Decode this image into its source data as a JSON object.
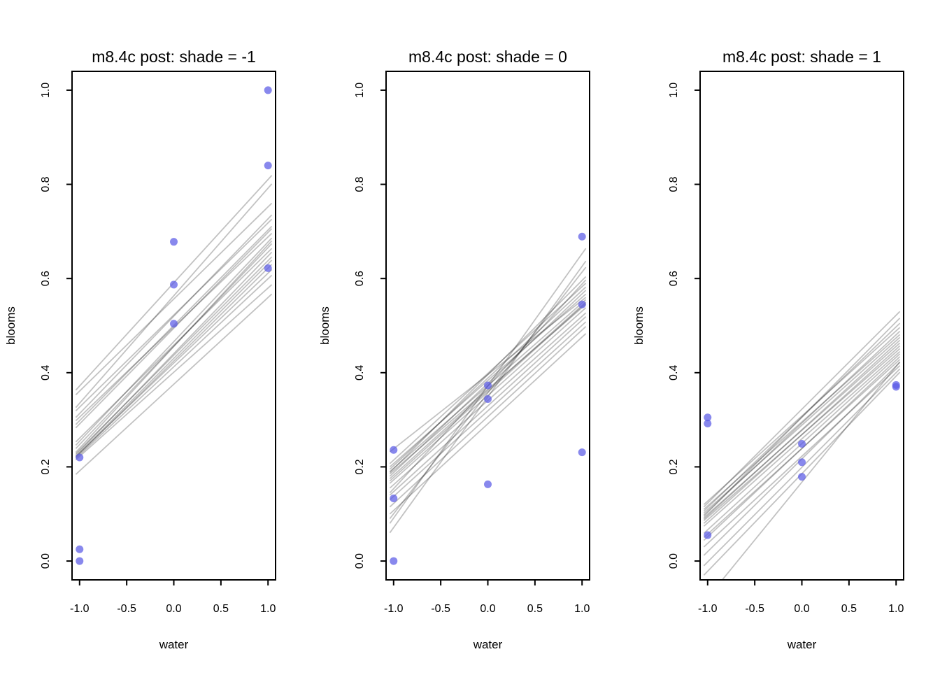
{
  "figure": {
    "background": "#ffffff",
    "point_color": "#5a5ae6",
    "point_opacity": 0.72,
    "point_radius": 5.5,
    "posterior_line_color": "#000000",
    "posterior_line_opacity": 0.24,
    "axis_color": "#000000",
    "x_tick_values": [
      -1.0,
      -0.5,
      0.0,
      0.5,
      1.0
    ],
    "x_tick_labels": [
      "-1.0",
      "-0.5",
      "0.0",
      "0.5",
      "1.0"
    ],
    "y_tick_values": [
      0.0,
      0.2,
      0.4,
      0.6,
      0.8,
      1.0
    ],
    "y_tick_labels": [
      "0.0",
      "0.2",
      "0.4",
      "0.6",
      "0.8",
      "1.0"
    ],
    "xlim": [
      -1.08,
      1.08
    ],
    "ylim": [
      -0.04,
      1.04
    ],
    "posterior_line_x_span": [
      -1.04,
      1.04
    ],
    "n_posterior_lines_per_panel": 20
  },
  "chart_data": [
    {
      "type": "scatter",
      "title": "m8.4c post: shade = -1",
      "xlabel": "water",
      "ylabel": "blooms",
      "xlim": [
        -1.08,
        1.08
      ],
      "ylim": [
        -0.04,
        1.04
      ],
      "points": [
        {
          "water": -1,
          "blooms": 0.0
        },
        {
          "water": -1,
          "blooms": 0.025
        },
        {
          "water": -1,
          "blooms": 0.22
        },
        {
          "water": 0,
          "blooms": 0.504
        },
        {
          "water": 0,
          "blooms": 0.587
        },
        {
          "water": 0,
          "blooms": 0.678
        },
        {
          "water": 1,
          "blooms": 0.622
        },
        {
          "water": 1,
          "blooms": 0.84
        },
        {
          "water": 1,
          "blooms": 1.0
        }
      ],
      "posterior_lines": [
        {
          "y_left": 0.363,
          "y_right": 0.819
        },
        {
          "y_left": 0.353,
          "y_right": 0.76
        },
        {
          "y_left": 0.326,
          "y_right": 0.801
        },
        {
          "y_left": 0.319,
          "y_right": 0.726
        },
        {
          "y_left": 0.305,
          "y_right": 0.735
        },
        {
          "y_left": 0.298,
          "y_right": 0.696
        },
        {
          "y_left": 0.29,
          "y_right": 0.711
        },
        {
          "y_left": 0.283,
          "y_right": 0.706
        },
        {
          "y_left": 0.253,
          "y_right": 0.664
        },
        {
          "y_left": 0.246,
          "y_right": 0.686
        },
        {
          "y_left": 0.239,
          "y_right": 0.674
        },
        {
          "y_left": 0.231,
          "y_right": 0.68
        },
        {
          "y_left": 0.228,
          "y_right": 0.646
        },
        {
          "y_left": 0.225,
          "y_right": 0.656
        },
        {
          "y_left": 0.222,
          "y_right": 0.639
        },
        {
          "y_left": 0.222,
          "y_right": 0.619
        },
        {
          "y_left": 0.22,
          "y_right": 0.63
        },
        {
          "y_left": 0.218,
          "y_right": 0.607
        },
        {
          "y_left": 0.215,
          "y_right": 0.587
        },
        {
          "y_left": 0.184,
          "y_right": 0.567
        }
      ]
    },
    {
      "type": "scatter",
      "title": "m8.4c post: shade = 0",
      "xlabel": "water",
      "ylabel": "blooms",
      "xlim": [
        -1.08,
        1.08
      ],
      "ylim": [
        -0.04,
        1.04
      ],
      "points": [
        {
          "water": -1,
          "blooms": 0.0
        },
        {
          "water": -1,
          "blooms": 0.133
        },
        {
          "water": -1,
          "blooms": 0.236
        },
        {
          "water": 0,
          "blooms": 0.163
        },
        {
          "water": 0,
          "blooms": 0.344
        },
        {
          "water": 0,
          "blooms": 0.373
        },
        {
          "water": 1,
          "blooms": 0.231
        },
        {
          "water": 1,
          "blooms": 0.545
        },
        {
          "water": 1,
          "blooms": 0.689
        }
      ],
      "posterior_lines": [
        {
          "y_left": 0.232,
          "y_right": 0.56
        },
        {
          "y_left": 0.207,
          "y_right": 0.59
        },
        {
          "y_left": 0.2,
          "y_right": 0.567
        },
        {
          "y_left": 0.195,
          "y_right": 0.582
        },
        {
          "y_left": 0.19,
          "y_right": 0.555
        },
        {
          "y_left": 0.188,
          "y_right": 0.604
        },
        {
          "y_left": 0.185,
          "y_right": 0.545
        },
        {
          "y_left": 0.18,
          "y_right": 0.575
        },
        {
          "y_left": 0.175,
          "y_right": 0.55
        },
        {
          "y_left": 0.17,
          "y_right": 0.548
        },
        {
          "y_left": 0.165,
          "y_right": 0.538
        },
        {
          "y_left": 0.155,
          "y_right": 0.527
        },
        {
          "y_left": 0.145,
          "y_right": 0.597
        },
        {
          "y_left": 0.14,
          "y_right": 0.519
        },
        {
          "y_left": 0.13,
          "y_right": 0.508
        },
        {
          "y_left": 0.115,
          "y_right": 0.498
        },
        {
          "y_left": 0.1,
          "y_right": 0.483
        },
        {
          "y_left": 0.09,
          "y_right": 0.624
        },
        {
          "y_left": 0.08,
          "y_right": 0.664
        },
        {
          "y_left": 0.06,
          "y_right": 0.637
        }
      ]
    },
    {
      "type": "scatter",
      "title": "m8.4c post: shade = 1",
      "xlabel": "water",
      "ylabel": "blooms",
      "xlim": [
        -1.08,
        1.08
      ],
      "ylim": [
        -0.04,
        1.04
      ],
      "points": [
        {
          "water": -1,
          "blooms": 0.055
        },
        {
          "water": -1,
          "blooms": 0.292
        },
        {
          "water": -1,
          "blooms": 0.305
        },
        {
          "water": 0,
          "blooms": 0.179
        },
        {
          "water": 0,
          "blooms": 0.21
        },
        {
          "water": 0,
          "blooms": 0.249
        },
        {
          "water": 1,
          "blooms": 0.37
        },
        {
          "water": 1,
          "blooms": 0.374
        }
      ],
      "posterior_lines": [
        {
          "y_left": 0.12,
          "y_right": 0.496
        },
        {
          "y_left": 0.115,
          "y_right": 0.53
        },
        {
          "y_left": 0.11,
          "y_right": 0.481
        },
        {
          "y_left": 0.106,
          "y_right": 0.505
        },
        {
          "y_left": 0.102,
          "y_right": 0.475
        },
        {
          "y_left": 0.098,
          "y_right": 0.488
        },
        {
          "y_left": 0.095,
          "y_right": 0.516
        },
        {
          "y_left": 0.092,
          "y_right": 0.463
        },
        {
          "y_left": 0.089,
          "y_right": 0.469
        },
        {
          "y_left": 0.086,
          "y_right": 0.451
        },
        {
          "y_left": 0.08,
          "y_right": 0.457
        },
        {
          "y_left": 0.074,
          "y_right": 0.445
        },
        {
          "y_left": 0.059,
          "y_right": 0.44
        },
        {
          "y_left": 0.05,
          "y_right": 0.428
        },
        {
          "y_left": 0.044,
          "y_right": 0.434
        },
        {
          "y_left": 0.03,
          "y_right": 0.415
        },
        {
          "y_left": 0.012,
          "y_right": 0.422
        },
        {
          "y_left": -0.01,
          "y_right": 0.408
        },
        {
          "y_left": -0.03,
          "y_right": 0.401
        },
        {
          "y_left": -0.088,
          "y_right": 0.423
        }
      ]
    }
  ]
}
